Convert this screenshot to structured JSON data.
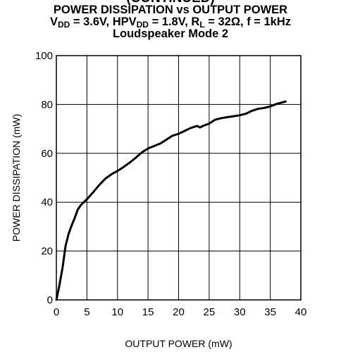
{
  "chart_data": {
    "type": "line",
    "cut_title": "(CONTINUED)",
    "title": "POWER DISSIPATION vs OUTPUT POWER",
    "subtitle": {
      "vdd_main": "V",
      "vdd_sub": "DD",
      "vdd_rest": " = 3.6V, HPV",
      "hpvdd_sub": "DD",
      "hpvdd_rest": " = 1.8V, R",
      "rl_sub": "L",
      "rl_rest": " = 32Ω, f = 1kHz"
    },
    "mode": "Loudspeaker Mode 2",
    "xlabel": "OUTPUT POWER (mW)",
    "ylabel": "POWER DISSIPATION (mW)",
    "xlim": [
      0,
      40
    ],
    "ylim": [
      0,
      100
    ],
    "xticks": [
      0,
      5,
      10,
      15,
      20,
      25,
      30,
      35,
      40
    ],
    "yticks": [
      0,
      20,
      40,
      60,
      80,
      100
    ],
    "grid": true,
    "series": [
      {
        "x": [
          0,
          0.5,
          1.0,
          1.5,
          2.0,
          2.5,
          3.0,
          3.5,
          4.0,
          4.5,
          5.0,
          6.0,
          7.0,
          8.0,
          9.0,
          10.0,
          11.0,
          12.0,
          13.0,
          14.0,
          15.0,
          16.0,
          17.0,
          18.0,
          19.0,
          20.0,
          21.0,
          22.0,
          23.0,
          23.5,
          24.0,
          25.0,
          26.0,
          27.0,
          28.0,
          29.0,
          30.0,
          31.0,
          32.0,
          33.0,
          34.0,
          35.0,
          36.0,
          37.5
        ],
        "values": [
          0,
          6,
          13,
          22,
          27,
          30.5,
          33.5,
          37,
          38.8,
          40,
          41.2,
          44,
          47,
          49.6,
          51.4,
          52.8,
          54.4,
          56.2,
          58.2,
          60.4,
          62,
          63,
          64,
          65.6,
          67.2,
          68,
          69.2,
          70.4,
          71.2,
          70.6,
          71.2,
          72.2,
          73.8,
          74.4,
          74.8,
          75.2,
          75.6,
          76.2,
          77.4,
          78.2,
          78.6,
          79.2,
          80.2,
          81.2
        ]
      }
    ]
  }
}
